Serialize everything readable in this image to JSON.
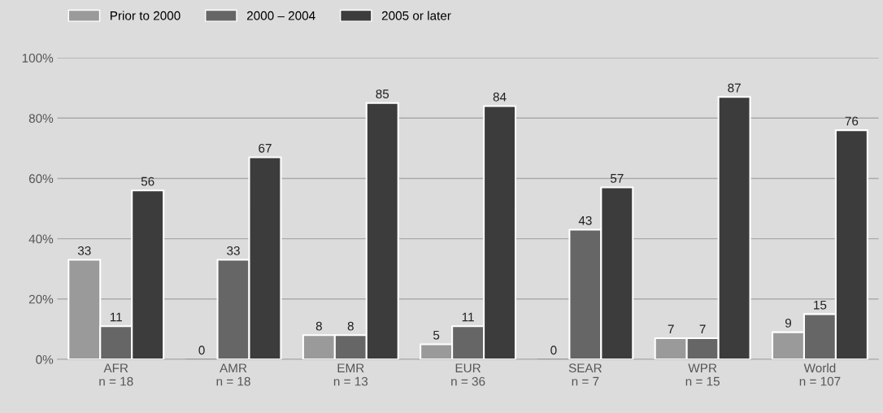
{
  "chart_data": {
    "type": "bar",
    "categories": [
      "AFR\nn = 18",
      "AMR\nn = 18",
      "EMR\nn = 13",
      "EUR\nn = 36",
      "SEAR\nn = 7",
      "WPR\nn = 15",
      "World\nn = 107"
    ],
    "series": [
      {
        "name": "Prior to 2000",
        "color": "#9a9a9a",
        "values": [
          33,
          0,
          8,
          5,
          0,
          7,
          9
        ]
      },
      {
        "name": "2000 – 2004",
        "color": "#666666",
        "values": [
          11,
          33,
          8,
          11,
          43,
          7,
          15
        ]
      },
      {
        "name": "2005 or later",
        "color": "#3c3c3c",
        "values": [
          56,
          67,
          85,
          84,
          57,
          87,
          76
        ]
      }
    ],
    "ylim": [
      0,
      100
    ],
    "yticks": [
      {
        "value": 0,
        "label": "0%"
      },
      {
        "value": 20,
        "label": "20%"
      },
      {
        "value": 40,
        "label": "40%"
      },
      {
        "value": 60,
        "label": "60%"
      },
      {
        "value": 80,
        "label": "80%"
      },
      {
        "value": 100,
        "label": "100%"
      }
    ],
    "grid": "y",
    "legend": "top left",
    "data_labels": true
  }
}
